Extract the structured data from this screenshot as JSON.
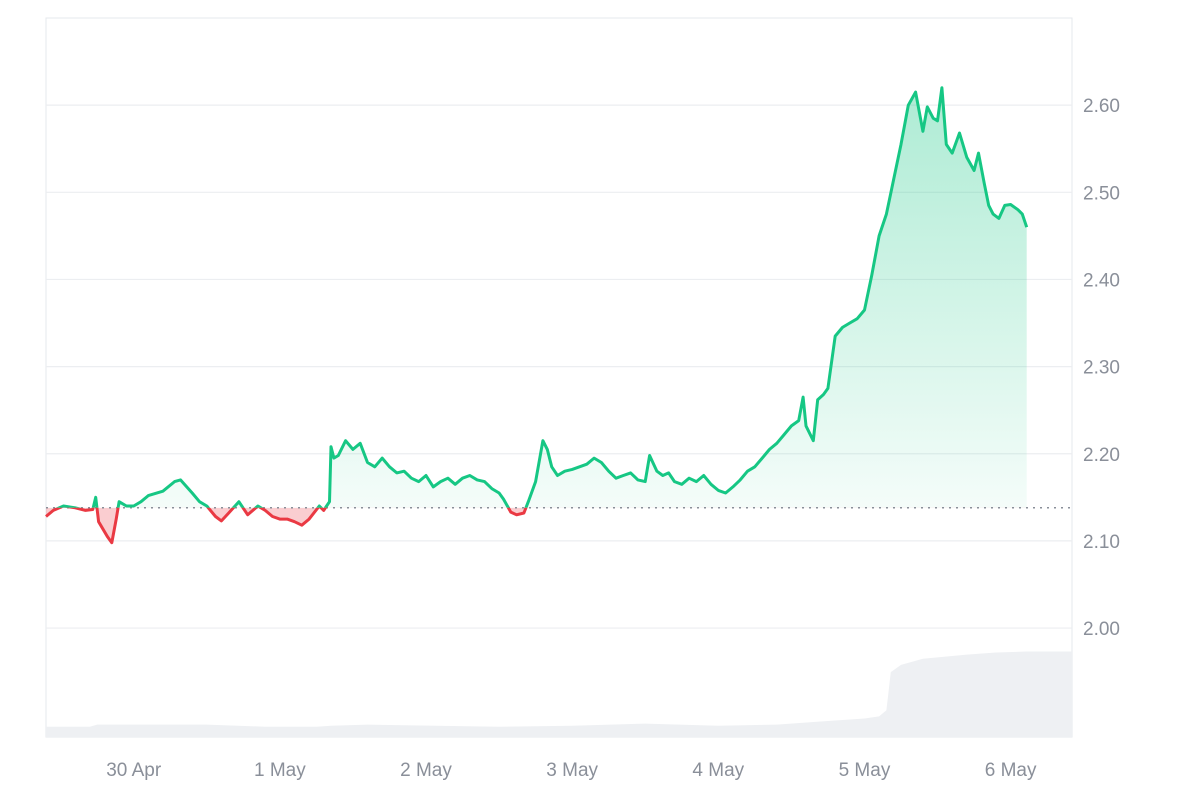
{
  "chart_data": {
    "type": "area",
    "baseline": 2.138,
    "ylim": [
      1.875,
      2.7
    ],
    "yticks": [
      2.0,
      2.1,
      2.2,
      2.3,
      2.4,
      2.5,
      2.6
    ],
    "ytick_labels": [
      "2.00",
      "2.10",
      "2.20",
      "2.30",
      "2.40",
      "2.50",
      "2.60"
    ],
    "xlim": [
      -0.6,
      6.42
    ],
    "xticks": [
      0,
      1,
      2,
      3,
      4,
      5,
      6
    ],
    "xtick_labels": [
      "30 Apr",
      "1 May",
      "2 May",
      "3 May",
      "4 May",
      "5 May",
      "6 May"
    ],
    "grid": true,
    "colors": {
      "up": "#16c784",
      "down": "#ea3943",
      "volume": "#eef0f3",
      "grid": "#eceef1",
      "baseline": "#8a8f99"
    },
    "series": [
      {
        "values": [
          [
            -0.6,
            2.128
          ],
          [
            -0.55,
            2.135
          ],
          [
            -0.48,
            2.14
          ],
          [
            -0.4,
            2.138
          ],
          [
            -0.33,
            2.135
          ],
          [
            -0.28,
            2.136
          ],
          [
            -0.26,
            2.15
          ],
          [
            -0.24,
            2.122
          ],
          [
            -0.18,
            2.105
          ],
          [
            -0.15,
            2.098
          ],
          [
            -0.12,
            2.125
          ],
          [
            -0.1,
            2.145
          ],
          [
            -0.05,
            2.14
          ],
          [
            0.0,
            2.14
          ],
          [
            0.05,
            2.145
          ],
          [
            0.1,
            2.152
          ],
          [
            0.2,
            2.157
          ],
          [
            0.28,
            2.168
          ],
          [
            0.32,
            2.17
          ],
          [
            0.4,
            2.155
          ],
          [
            0.45,
            2.145
          ],
          [
            0.5,
            2.14
          ],
          [
            0.56,
            2.128
          ],
          [
            0.6,
            2.123
          ],
          [
            0.65,
            2.132
          ],
          [
            0.72,
            2.145
          ],
          [
            0.78,
            2.13
          ],
          [
            0.85,
            2.14
          ],
          [
            0.9,
            2.135
          ],
          [
            0.95,
            2.128
          ],
          [
            1.0,
            2.125
          ],
          [
            1.05,
            2.125
          ],
          [
            1.1,
            2.122
          ],
          [
            1.15,
            2.118
          ],
          [
            1.2,
            2.125
          ],
          [
            1.27,
            2.14
          ],
          [
            1.3,
            2.135
          ],
          [
            1.32,
            2.14
          ],
          [
            1.34,
            2.145
          ],
          [
            1.35,
            2.208
          ],
          [
            1.37,
            2.195
          ],
          [
            1.4,
            2.198
          ],
          [
            1.45,
            2.215
          ],
          [
            1.5,
            2.205
          ],
          [
            1.55,
            2.212
          ],
          [
            1.6,
            2.19
          ],
          [
            1.65,
            2.185
          ],
          [
            1.7,
            2.195
          ],
          [
            1.75,
            2.185
          ],
          [
            1.8,
            2.178
          ],
          [
            1.85,
            2.18
          ],
          [
            1.9,
            2.172
          ],
          [
            1.95,
            2.168
          ],
          [
            2.0,
            2.175
          ],
          [
            2.05,
            2.162
          ],
          [
            2.1,
            2.168
          ],
          [
            2.15,
            2.172
          ],
          [
            2.2,
            2.165
          ],
          [
            2.25,
            2.172
          ],
          [
            2.3,
            2.175
          ],
          [
            2.35,
            2.17
          ],
          [
            2.4,
            2.168
          ],
          [
            2.45,
            2.16
          ],
          [
            2.5,
            2.155
          ],
          [
            2.53,
            2.148
          ],
          [
            2.58,
            2.133
          ],
          [
            2.62,
            2.13
          ],
          [
            2.67,
            2.132
          ],
          [
            2.7,
            2.145
          ],
          [
            2.75,
            2.168
          ],
          [
            2.8,
            2.215
          ],
          [
            2.83,
            2.205
          ],
          [
            2.86,
            2.185
          ],
          [
            2.9,
            2.175
          ],
          [
            2.95,
            2.18
          ],
          [
            3.0,
            2.182
          ],
          [
            3.05,
            2.185
          ],
          [
            3.1,
            2.188
          ],
          [
            3.15,
            2.195
          ],
          [
            3.2,
            2.19
          ],
          [
            3.25,
            2.18
          ],
          [
            3.3,
            2.172
          ],
          [
            3.35,
            2.175
          ],
          [
            3.4,
            2.178
          ],
          [
            3.45,
            2.17
          ],
          [
            3.5,
            2.168
          ],
          [
            3.53,
            2.198
          ],
          [
            3.58,
            2.18
          ],
          [
            3.62,
            2.175
          ],
          [
            3.66,
            2.178
          ],
          [
            3.7,
            2.168
          ],
          [
            3.75,
            2.165
          ],
          [
            3.8,
            2.172
          ],
          [
            3.85,
            2.168
          ],
          [
            3.9,
            2.175
          ],
          [
            3.95,
            2.165
          ],
          [
            4.0,
            2.158
          ],
          [
            4.05,
            2.155
          ],
          [
            4.1,
            2.162
          ],
          [
            4.15,
            2.17
          ],
          [
            4.2,
            2.18
          ],
          [
            4.25,
            2.185
          ],
          [
            4.3,
            2.195
          ],
          [
            4.35,
            2.205
          ],
          [
            4.4,
            2.212
          ],
          [
            4.45,
            2.222
          ],
          [
            4.5,
            2.232
          ],
          [
            4.55,
            2.238
          ],
          [
            4.58,
            2.265
          ],
          [
            4.6,
            2.232
          ],
          [
            4.65,
            2.215
          ],
          [
            4.68,
            2.262
          ],
          [
            4.72,
            2.268
          ],
          [
            4.75,
            2.275
          ],
          [
            4.8,
            2.335
          ],
          [
            4.85,
            2.345
          ],
          [
            4.9,
            2.35
          ],
          [
            4.95,
            2.355
          ],
          [
            5.0,
            2.365
          ],
          [
            5.05,
            2.405
          ],
          [
            5.1,
            2.45
          ],
          [
            5.15,
            2.475
          ],
          [
            5.2,
            2.515
          ],
          [
            5.25,
            2.555
          ],
          [
            5.3,
            2.6
          ],
          [
            5.35,
            2.615
          ],
          [
            5.4,
            2.57
          ],
          [
            5.43,
            2.598
          ],
          [
            5.47,
            2.585
          ],
          [
            5.5,
            2.582
          ],
          [
            5.53,
            2.62
          ],
          [
            5.56,
            2.555
          ],
          [
            5.6,
            2.545
          ],
          [
            5.65,
            2.568
          ],
          [
            5.7,
            2.54
          ],
          [
            5.75,
            2.525
          ],
          [
            5.78,
            2.545
          ],
          [
            5.82,
            2.51
          ],
          [
            5.85,
            2.485
          ],
          [
            5.88,
            2.475
          ],
          [
            5.92,
            2.47
          ],
          [
            5.96,
            2.485
          ],
          [
            6.0,
            2.486
          ],
          [
            6.05,
            2.48
          ],
          [
            6.08,
            2.475
          ],
          [
            6.11,
            2.46
          ]
        ]
      }
    ],
    "volume": {
      "values": [
        [
          -0.6,
          0.1
        ],
        [
          -0.3,
          0.1
        ],
        [
          -0.25,
          0.12
        ],
        [
          0.5,
          0.12
        ],
        [
          0.9,
          0.1
        ],
        [
          1.25,
          0.1
        ],
        [
          1.35,
          0.11
        ],
        [
          1.6,
          0.12
        ],
        [
          2.5,
          0.1
        ],
        [
          3.0,
          0.11
        ],
        [
          3.5,
          0.13
        ],
        [
          4.0,
          0.11
        ],
        [
          4.4,
          0.12
        ],
        [
          4.7,
          0.15
        ],
        [
          5.0,
          0.18
        ],
        [
          5.1,
          0.2
        ],
        [
          5.15,
          0.26
        ],
        [
          5.18,
          0.63
        ],
        [
          5.25,
          0.7
        ],
        [
          5.4,
          0.76
        ],
        [
          5.7,
          0.8
        ],
        [
          5.9,
          0.82
        ],
        [
          6.11,
          0.83
        ]
      ]
    }
  }
}
